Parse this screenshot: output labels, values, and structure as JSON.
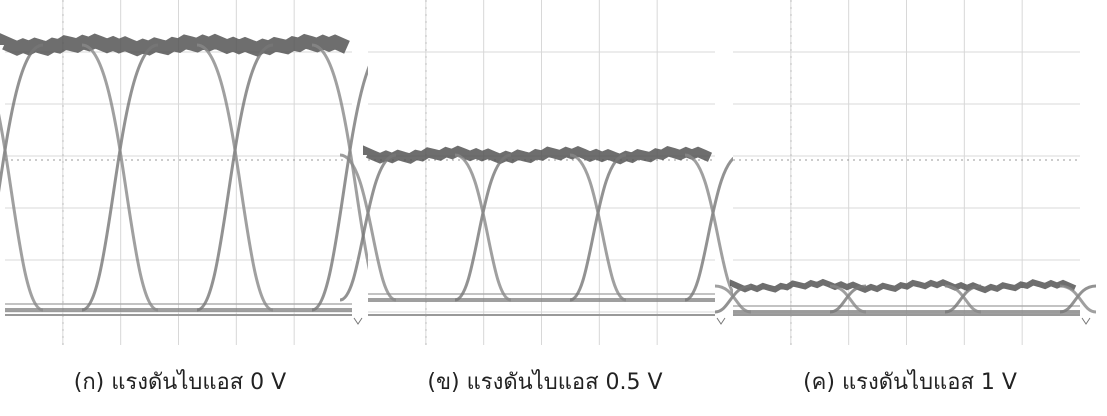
{
  "captions": [
    "(ก) แรงดันไบแอส 0 V",
    "(ข) แรงดันไบแอส 0.5 V",
    "(ค) แรงดันไบแอส 1 V"
  ]
}
